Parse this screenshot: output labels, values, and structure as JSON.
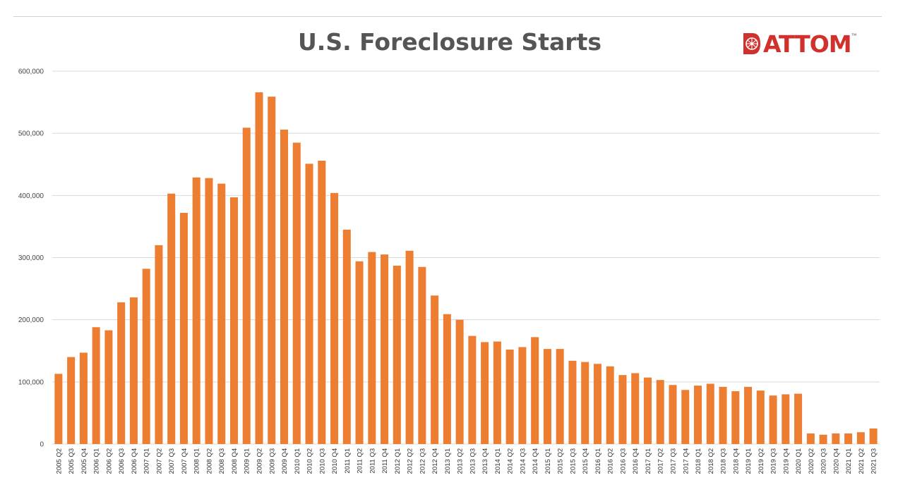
{
  "chart_data": {
    "type": "bar",
    "title": "U.S. Foreclosure Starts",
    "xlabel": "",
    "ylabel": "",
    "ylim": [
      0,
      600000
    ],
    "yticks": [
      "0",
      "100,000",
      "200,000",
      "300,000",
      "400,000",
      "500,000",
      "600,000"
    ],
    "grid": true,
    "bar_color": "#ed7d31",
    "categories": [
      "2005 Q2",
      "2005 Q3",
      "2005 Q4",
      "2006 Q1",
      "2006 Q2",
      "2006 Q3",
      "2006 Q4",
      "2007 Q1",
      "2007 Q2",
      "2007 Q3",
      "2007 Q4",
      "2008 Q1",
      "2008 Q2",
      "2008 Q3",
      "2008 Q4",
      "2009 Q1",
      "2009 Q2",
      "2009 Q3",
      "2009 Q4",
      "2010 Q1",
      "2010 Q2",
      "2010 Q3",
      "2010 Q4",
      "2011 Q1",
      "2011 Q2",
      "2011 Q3",
      "2011 Q4",
      "2012 Q1",
      "2012 Q2",
      "2012 Q3",
      "2012 Q4",
      "2013 Q1",
      "2013 Q2",
      "2013 Q3",
      "2013 Q4",
      "2014 Q1",
      "2014 Q2",
      "2014 Q3",
      "2014 Q4",
      "2015 Q1",
      "2015 Q2",
      "2015 Q3",
      "2015 Q4",
      "2016 Q1",
      "2016 Q2",
      "2016 Q3",
      "2016 Q4",
      "2017 Q1",
      "2017 Q2",
      "2017 Q3",
      "2017 Q4",
      "2018 Q1",
      "2018 Q2",
      "2018 Q3",
      "2018 Q4",
      "2019 Q1",
      "2019 Q2",
      "2019 Q3",
      "2019 Q4",
      "2020 Q1",
      "2020 Q2",
      "2020 Q3",
      "2020 Q4",
      "2021 Q1",
      "2021 Q2",
      "2021 Q3"
    ],
    "values": [
      113000,
      140000,
      147000,
      188000,
      183000,
      228000,
      236000,
      282000,
      320000,
      403000,
      372000,
      429000,
      428000,
      419000,
      397000,
      509000,
      566000,
      559000,
      506000,
      485000,
      451000,
      456000,
      404000,
      345000,
      294000,
      309000,
      305000,
      287000,
      311000,
      285000,
      239000,
      209000,
      200000,
      174000,
      164000,
      165000,
      152000,
      156000,
      172000,
      153000,
      153000,
      134000,
      132000,
      129000,
      125000,
      111000,
      114000,
      107000,
      103000,
      95000,
      87000,
      94000,
      97000,
      92000,
      85000,
      92000,
      86000,
      78000,
      80000,
      81000,
      17000,
      15000,
      17000,
      17000,
      19000,
      25000
    ]
  },
  "logo": {
    "text": "ATTOM",
    "tm": "™"
  }
}
